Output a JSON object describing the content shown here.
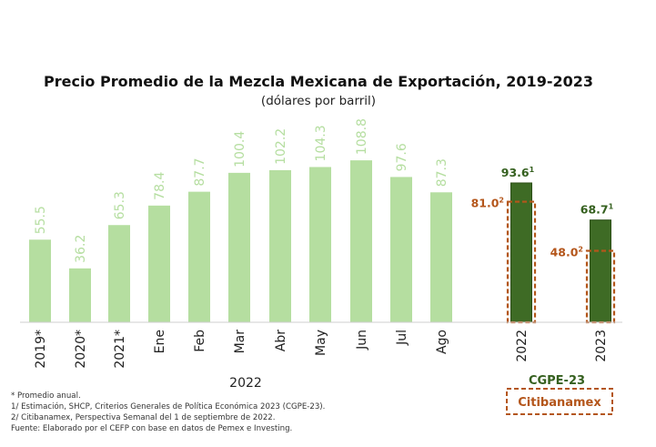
{
  "chart_data": {
    "type": "bar",
    "title": "Precio Promedio de la Mezcla Mexicana de Exportación, 2019-2023",
    "subtitle": "(dólares por barril)",
    "categories": [
      "2019*",
      "2020*",
      "2021*",
      "Ene",
      "Feb",
      "Mar",
      "Abr",
      "May",
      "Jun",
      "Jul",
      "Ago",
      "2022",
      "2023"
    ],
    "group_label": "2022",
    "ylim": [
      0,
      120
    ],
    "grid": false,
    "series": [
      {
        "name": "",
        "color": "#b5dea0",
        "values": [
          55.5,
          36.2,
          65.3,
          78.4,
          87.7,
          100.4,
          102.2,
          104.3,
          108.8,
          97.6,
          87.3,
          null,
          null
        ],
        "labels": [
          "55.5",
          "36.2",
          "65.3",
          "78.4",
          "87.7",
          "100.4",
          "102.2",
          "104.3",
          "108.8",
          "97.6",
          "87.3",
          null,
          null
        ]
      },
      {
        "name": "CGPE-23",
        "color": "#3e6b25",
        "values": [
          null,
          null,
          null,
          null,
          null,
          null,
          null,
          null,
          null,
          null,
          null,
          93.6,
          68.7
        ],
        "labels": [
          null,
          null,
          null,
          null,
          null,
          null,
          null,
          null,
          null,
          null,
          null,
          "93.6",
          "68.7"
        ],
        "superscript": "1"
      },
      {
        "name": "Citibanamex",
        "color": "#b4561b",
        "style": "dashed-outline",
        "values": [
          null,
          null,
          null,
          null,
          null,
          null,
          null,
          null,
          null,
          null,
          null,
          81.0,
          48.0
        ],
        "labels": [
          null,
          null,
          null,
          null,
          null,
          null,
          null,
          null,
          null,
          null,
          null,
          "81.0",
          "48.0"
        ],
        "superscript": "2"
      }
    ],
    "legend": [
      "CGPE-23",
      "Citibanamex"
    ],
    "legend_position": "bottom-right",
    "notes": [
      "* Promedio anual.",
      "1/ Estimación, SHCP, Criterios Generales de Política Económica 2023 (CGPE-23).",
      "2/ Citibanamex, Perspectiva Semanal del 1 de septiembre de 2022.",
      "Fuente: Elaborado por el CEFP con base en datos de Pemex e Investing."
    ]
  }
}
